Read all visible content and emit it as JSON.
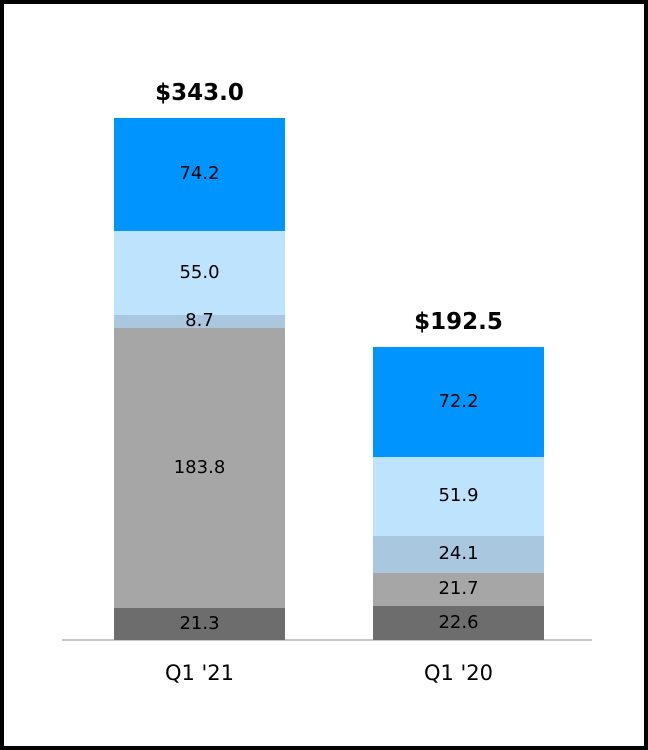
{
  "chart_data": {
    "type": "bar",
    "stacked": true,
    "title": "",
    "xlabel": "",
    "ylabel": "",
    "grid": false,
    "legend": "none",
    "ylim": [
      0,
      360
    ],
    "categories": [
      "Q1 '21",
      "Q1 '20"
    ],
    "totals": [
      "$343.0",
      "$192.5"
    ],
    "series": [
      {
        "name": "dark-gray",
        "color": "#6d6d6d",
        "values": [
          21.3,
          22.6
        ]
      },
      {
        "name": "gray",
        "color": "#a6a6a6",
        "values": [
          183.8,
          21.7
        ]
      },
      {
        "name": "blue-gray",
        "color": "#aac7e0",
        "values": [
          8.7,
          24.1
        ]
      },
      {
        "name": "light-blue",
        "color": "#bee3fc",
        "values": [
          55.0,
          51.9
        ]
      },
      {
        "name": "blue",
        "color": "#0094ff",
        "values": [
          74.2,
          72.2
        ]
      }
    ],
    "value_labels": true,
    "value_label_format": "one-decimal",
    "colors": {
      "text": "#000000",
      "axis_line": "#c8c8c8",
      "frame_border": "#000000",
      "background": "#ffffff"
    }
  }
}
